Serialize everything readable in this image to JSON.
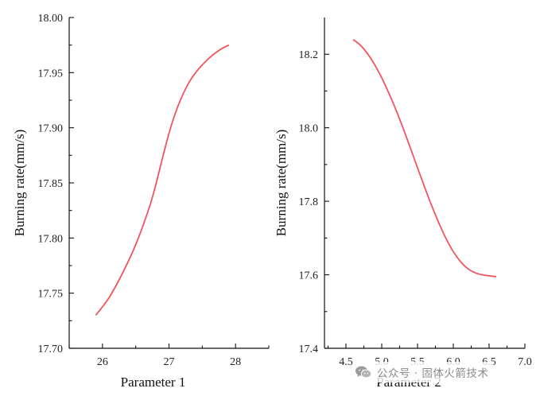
{
  "chart_data": [
    {
      "type": "line",
      "title": "",
      "xlabel": "Parameter 1",
      "ylabel": "Burning rate(mm/s)",
      "xlim": [
        25.5,
        28.5
      ],
      "ylim": [
        17.7,
        18.0
      ],
      "x_ticks": [
        26,
        27,
        28
      ],
      "x_tick_labels": [
        "26",
        "27",
        "28"
      ],
      "y_ticks": [
        17.7,
        17.75,
        17.8,
        17.85,
        17.9,
        17.95,
        18.0
      ],
      "y_tick_labels": [
        "17.70",
        "17.75",
        "17.80",
        "17.85",
        "17.90",
        "17.95",
        "18.00"
      ],
      "grid": false,
      "legend": "none",
      "line_color": "#f0555d",
      "series": [
        {
          "x": [
            25.9,
            26.1,
            26.3,
            26.5,
            26.7,
            26.8,
            26.9,
            27.0,
            27.1,
            27.2,
            27.3,
            27.4,
            27.5,
            27.6,
            27.7,
            27.8,
            27.9
          ],
          "values": [
            17.73,
            17.746,
            17.768,
            17.794,
            17.827,
            17.848,
            17.872,
            17.895,
            17.914,
            17.929,
            17.941,
            17.95,
            17.957,
            17.963,
            17.968,
            17.972,
            17.975
          ]
        }
      ]
    },
    {
      "type": "line",
      "title": "",
      "xlabel": "Parameter 2",
      "ylabel": "Burning rate(mm/s)",
      "xlim": [
        4.2,
        7.0
      ],
      "ylim": [
        17.4,
        18.3
      ],
      "x_ticks": [
        4.5,
        5.0,
        5.5,
        6.0,
        6.5,
        7.0
      ],
      "x_tick_labels": [
        "4.5",
        "5.0",
        "5.5",
        "6.0",
        "6.5",
        "7.0"
      ],
      "y_ticks": [
        17.4,
        17.6,
        17.8,
        18.0,
        18.2
      ],
      "y_tick_labels": [
        "17.4",
        "17.6",
        "17.8",
        "18.0",
        "18.2"
      ],
      "grid": false,
      "legend": "none",
      "line_color": "#f0555d",
      "series": [
        {
          "x": [
            4.6,
            4.7,
            4.8,
            4.9,
            5.0,
            5.1,
            5.2,
            5.3,
            5.4,
            5.5,
            5.6,
            5.7,
            5.8,
            5.9,
            6.0,
            6.1,
            6.2,
            6.3,
            6.4,
            6.5,
            6.6
          ],
          "values": [
            18.24,
            18.225,
            18.202,
            18.172,
            18.136,
            18.094,
            18.048,
            17.998,
            17.945,
            17.891,
            17.838,
            17.787,
            17.74,
            17.698,
            17.663,
            17.636,
            17.617,
            17.606,
            17.6,
            17.597,
            17.595
          ]
        }
      ]
    }
  ],
  "watermark": {
    "icon": "wechat-icon",
    "text": "公众号 · 固体火箭技术"
  }
}
